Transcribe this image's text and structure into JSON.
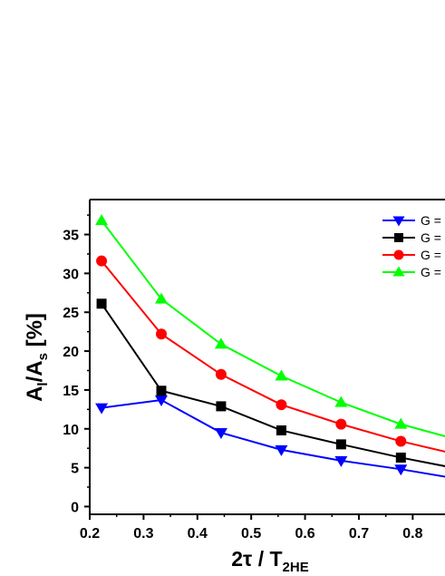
{
  "chart_data": {
    "type": "line",
    "title": "",
    "xlabel": {
      "main": "2τ / T",
      "sub": "2HE"
    },
    "ylabel": {
      "part1": "A",
      "sub1": "l",
      "part2": "/A",
      "sub2": "s",
      "unit": " [%]"
    },
    "xlim": [
      0.2,
      0.86
    ],
    "ylim": [
      -1,
      39.5
    ],
    "x_ticks": [
      0.2,
      0.3,
      0.4,
      0.5,
      0.6,
      0.7,
      0.8
    ],
    "y_ticks": [
      0,
      5,
      10,
      15,
      20,
      25,
      30,
      35
    ],
    "x_tick_labels": [
      "0.2",
      "0.3",
      "0.4",
      "0.5",
      "0.6",
      "0.7",
      "0.8"
    ],
    "y_tick_labels": [
      "0",
      "5",
      "10",
      "15",
      "20",
      "25",
      "30",
      "35"
    ],
    "legend_position": "top-right",
    "grid": false,
    "series": [
      {
        "name": "G =",
        "color": "#0000ff",
        "marker": "triangle-down",
        "x": [
          0.222,
          0.333,
          0.444,
          0.556,
          0.667,
          0.778,
          0.889
        ],
        "y": [
          12.7,
          13.7,
          9.5,
          7.3,
          5.9,
          4.8,
          3.5
        ]
      },
      {
        "name": "G =",
        "color": "#000000",
        "marker": "square",
        "x": [
          0.222,
          0.333,
          0.444,
          0.556,
          0.667,
          0.778,
          0.889
        ],
        "y": [
          26.1,
          14.9,
          12.9,
          9.8,
          8.0,
          6.3,
          4.8
        ]
      },
      {
        "name": "G =",
        "color": "#ff0000",
        "marker": "circle",
        "x": [
          0.222,
          0.333,
          0.444,
          0.556,
          0.667,
          0.778,
          0.889
        ],
        "y": [
          31.6,
          22.2,
          17.0,
          13.1,
          10.6,
          8.4,
          6.6
        ]
      },
      {
        "name": "G =",
        "color": "#00ff00",
        "marker": "triangle-up",
        "x": [
          0.222,
          0.333,
          0.444,
          0.556,
          0.667,
          0.778,
          0.889
        ],
        "y": [
          36.8,
          26.7,
          20.9,
          16.8,
          13.4,
          10.6,
          8.5
        ]
      }
    ]
  }
}
